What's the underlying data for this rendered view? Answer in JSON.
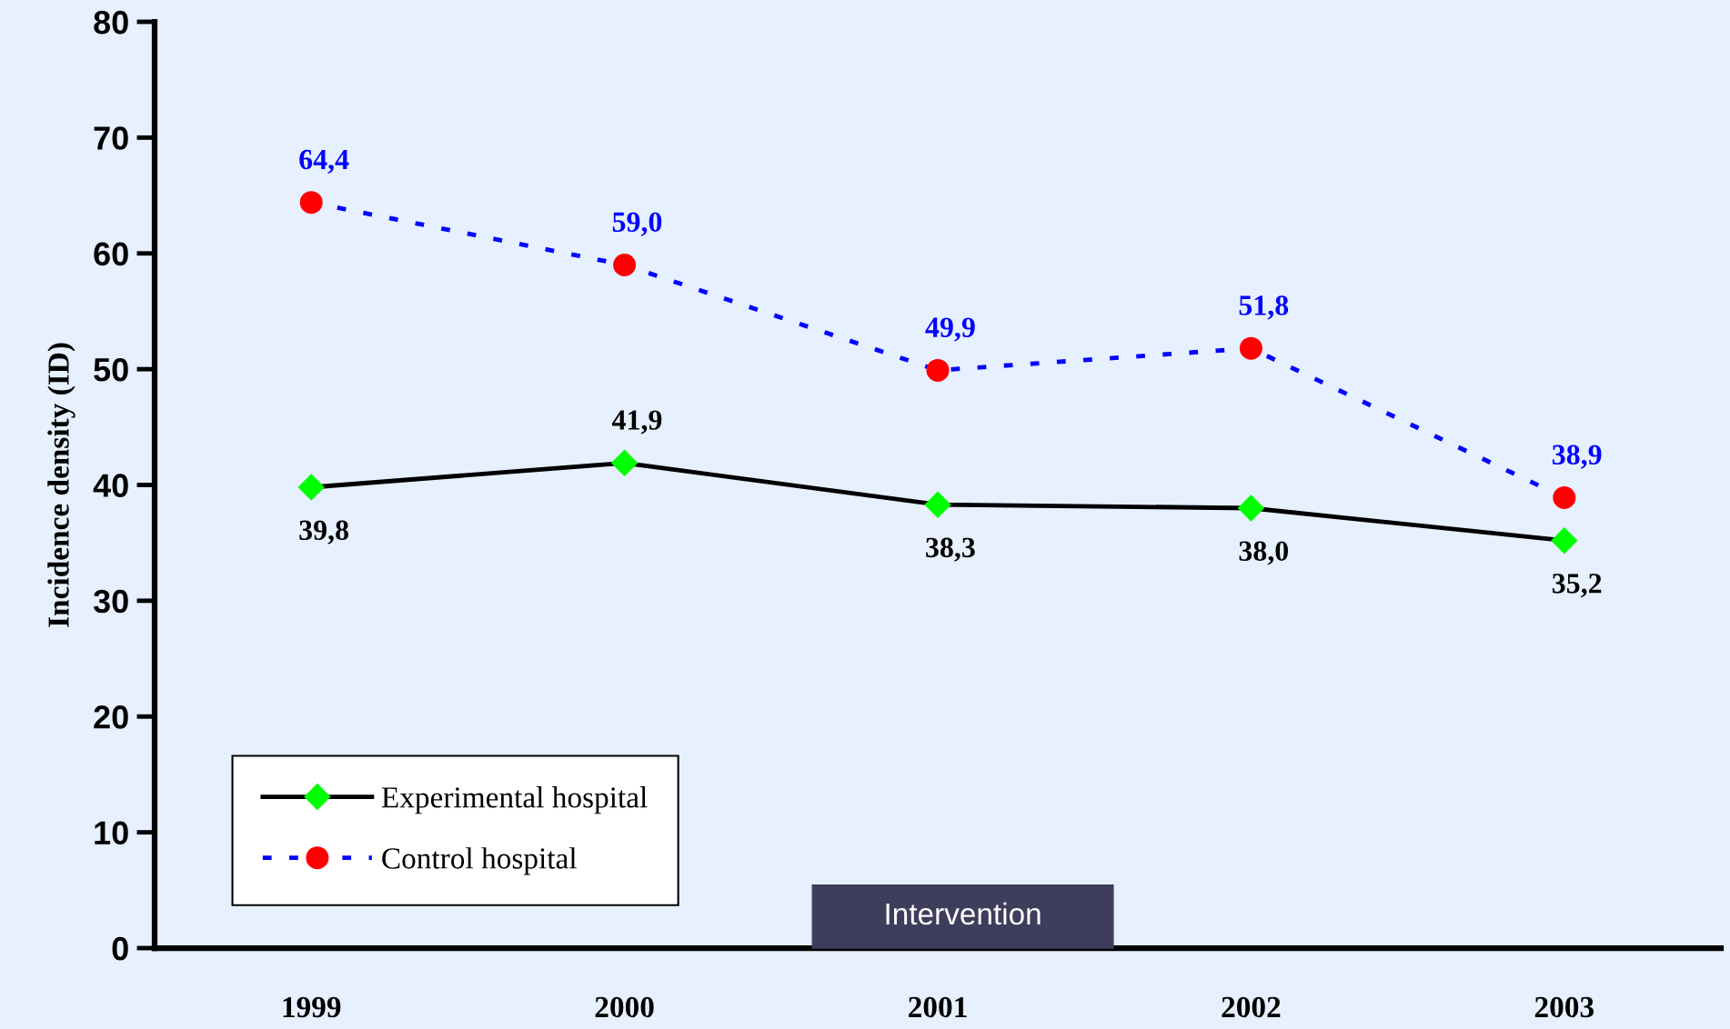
{
  "chart_data": {
    "type": "line",
    "ylabel": "Incidence density (ID)",
    "x": [
      1999,
      2000,
      2001,
      2002,
      2003
    ],
    "xlim": [
      1998.5,
      2003.5
    ],
    "xticks": [
      1999,
      2000,
      2001,
      2002,
      2003
    ],
    "ylim": [
      0,
      80
    ],
    "yticks": [
      0,
      10,
      20,
      30,
      40,
      50,
      60,
      70,
      80
    ],
    "grid": false,
    "legend": "bottom left",
    "series": [
      {
        "name": "Experimental hospital",
        "color": "#000000",
        "marker": "diamond",
        "line_style": "solid",
        "values": [
          39.8,
          41.9,
          38.3,
          38.0,
          35.2
        ],
        "value_labels": [
          "39,8",
          "41,9",
          "38,3",
          "38,0",
          "35,2"
        ]
      },
      {
        "name": "Control hospital",
        "color": "#0000ff",
        "marker": "circle",
        "line_style": "dashed",
        "values": [
          64.4,
          59.0,
          49.9,
          51.8,
          38.9
        ],
        "value_labels": [
          "64,4",
          "59,0",
          "49,9",
          "51,8",
          "38,9"
        ]
      }
    ],
    "bands": [
      {
        "axis": "x",
        "from": 2000.6,
        "to": 2001.56,
        "label": "Intervention",
        "color": "#3f3d5c"
      }
    ]
  }
}
